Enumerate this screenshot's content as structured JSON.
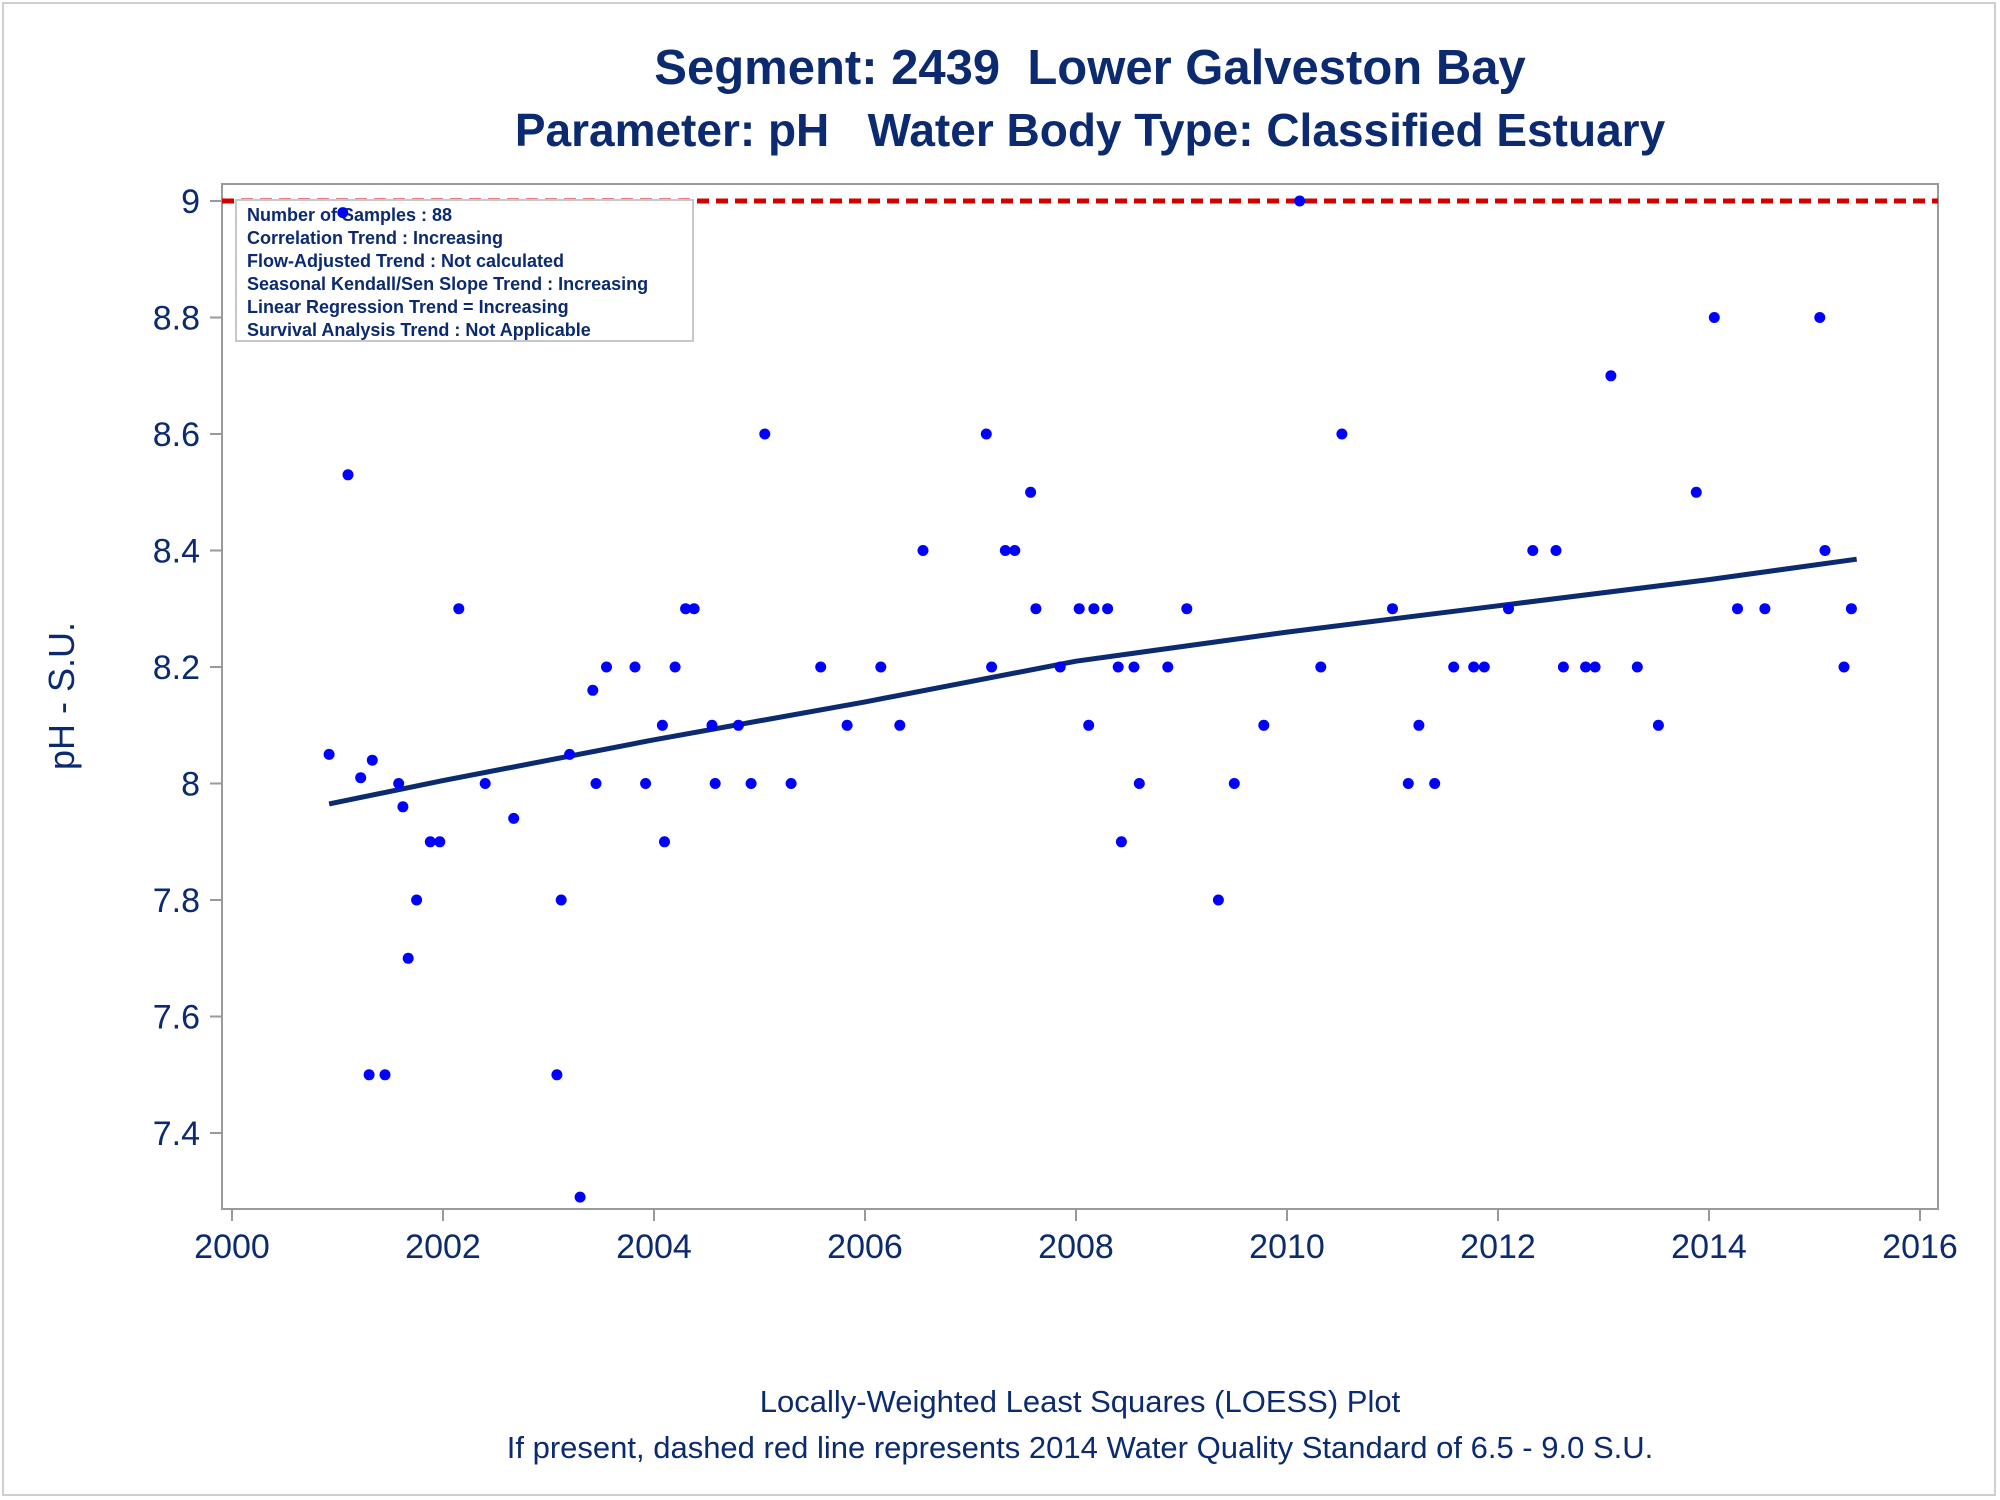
{
  "chart_data": {
    "type": "scatter",
    "title": "Segment: 2439  Lower Galveston Bay",
    "subtitle": "Parameter: pH   Water Body Type: Classified Estuary",
    "xlabel": "",
    "ylabel": "pH - S.U.",
    "xlim": [
      2000,
      2016
    ],
    "ylim": [
      7.3,
      9.03
    ],
    "x_ticks": [
      "2000",
      "2002",
      "2004",
      "2006",
      "2008",
      "2010",
      "2012",
      "2014",
      "2016"
    ],
    "y_ticks": [
      "7.4",
      "7.6",
      "7.8",
      "8",
      "8.2",
      "8.4",
      "8.6",
      "8.8",
      "9"
    ],
    "grid": false,
    "colors": {
      "points": "#0000ff",
      "trend": "#0b2a6f",
      "standard": "#d40000",
      "text": "#0b2a6f"
    },
    "standard_line": {
      "y": 9.0,
      "style": "dashed"
    },
    "series": [
      {
        "values": [
          [
            2000.92,
            8.05
          ],
          [
            2001.05,
            8.98
          ],
          [
            2001.1,
            8.53
          ],
          [
            2001.22,
            8.01
          ],
          [
            2001.3,
            7.5
          ],
          [
            2001.33,
            8.04
          ],
          [
            2001.45,
            7.5
          ],
          [
            2001.58,
            8.0
          ],
          [
            2001.62,
            7.96
          ],
          [
            2001.67,
            7.7
          ],
          [
            2001.75,
            7.8
          ],
          [
            2001.88,
            7.9
          ],
          [
            2001.97,
            7.9
          ],
          [
            2002.15,
            8.3
          ],
          [
            2002.4,
            8.0
          ],
          [
            2002.67,
            7.94
          ],
          [
            2003.08,
            7.5
          ],
          [
            2003.12,
            7.8
          ],
          [
            2003.2,
            8.05
          ],
          [
            2003.3,
            7.29
          ],
          [
            2003.42,
            8.16
          ],
          [
            2003.45,
            8.0
          ],
          [
            2003.55,
            8.2
          ],
          [
            2003.82,
            8.2
          ],
          [
            2003.92,
            8.0
          ],
          [
            2004.08,
            8.1
          ],
          [
            2004.1,
            7.9
          ],
          [
            2004.2,
            8.2
          ],
          [
            2004.3,
            8.3
          ],
          [
            2004.38,
            8.3
          ],
          [
            2004.55,
            8.1
          ],
          [
            2004.58,
            8.0
          ],
          [
            2004.8,
            8.1
          ],
          [
            2004.92,
            8.0
          ],
          [
            2005.05,
            8.6
          ],
          [
            2005.3,
            8.0
          ],
          [
            2005.58,
            8.2
          ],
          [
            2005.83,
            8.1
          ],
          [
            2006.15,
            8.2
          ],
          [
            2006.33,
            8.1
          ],
          [
            2006.55,
            8.4
          ],
          [
            2007.15,
            8.6
          ],
          [
            2007.2,
            8.2
          ],
          [
            2007.33,
            8.4
          ],
          [
            2007.42,
            8.4
          ],
          [
            2007.57,
            8.5
          ],
          [
            2007.62,
            8.3
          ],
          [
            2007.85,
            8.2
          ],
          [
            2008.03,
            8.3
          ],
          [
            2008.12,
            8.1
          ],
          [
            2008.17,
            8.3
          ],
          [
            2008.3,
            8.3
          ],
          [
            2008.4,
            8.2
          ],
          [
            2008.43,
            7.9
          ],
          [
            2008.55,
            8.2
          ],
          [
            2008.6,
            8.0
          ],
          [
            2008.87,
            8.2
          ],
          [
            2009.05,
            8.3
          ],
          [
            2009.35,
            7.8
          ],
          [
            2009.5,
            8.0
          ],
          [
            2009.78,
            8.1
          ],
          [
            2010.12,
            9.0
          ],
          [
            2010.32,
            8.2
          ],
          [
            2010.52,
            8.6
          ],
          [
            2011.0,
            8.3
          ],
          [
            2011.15,
            8.0
          ],
          [
            2011.25,
            8.1
          ],
          [
            2011.4,
            8.0
          ],
          [
            2011.58,
            8.2
          ],
          [
            2011.77,
            8.2
          ],
          [
            2011.87,
            8.2
          ],
          [
            2012.1,
            8.3
          ],
          [
            2012.33,
            8.4
          ],
          [
            2012.55,
            8.4
          ],
          [
            2012.62,
            8.2
          ],
          [
            2012.83,
            8.2
          ],
          [
            2012.92,
            8.2
          ],
          [
            2013.07,
            8.7
          ],
          [
            2013.32,
            8.2
          ],
          [
            2013.52,
            8.1
          ],
          [
            2013.88,
            8.5
          ],
          [
            2014.05,
            8.8
          ],
          [
            2014.27,
            8.3
          ],
          [
            2014.53,
            8.3
          ],
          [
            2015.05,
            8.8
          ],
          [
            2015.1,
            8.4
          ],
          [
            2015.28,
            8.2
          ],
          [
            2015.35,
            8.3
          ]
        ]
      }
    ],
    "trend_line": [
      [
        2000.92,
        7.965
      ],
      [
        2002.0,
        8.005
      ],
      [
        2004.0,
        8.075
      ],
      [
        2006.0,
        8.14
      ],
      [
        2007.0,
        8.175
      ],
      [
        2008.0,
        8.21
      ],
      [
        2009.0,
        8.235
      ],
      [
        2010.0,
        8.26
      ],
      [
        2012.0,
        8.305
      ],
      [
        2014.0,
        8.35
      ],
      [
        2015.4,
        8.385
      ]
    ],
    "inset_lines": [
      "Number of Samples : 88",
      "Correlation Trend : Increasing",
      "Flow-Adjusted Trend : Not calculated",
      "Seasonal Kendall/Sen Slope Trend : Increasing",
      "Linear Regression Trend = Increasing",
      "Survival Analysis Trend : Not Applicable"
    ],
    "footnotes": [
      "Locally-Weighted Least Squares (LOESS) Plot",
      "If present, dashed red line represents 2014 Water Quality Standard of 6.5 - 9.0 S.U."
    ]
  }
}
